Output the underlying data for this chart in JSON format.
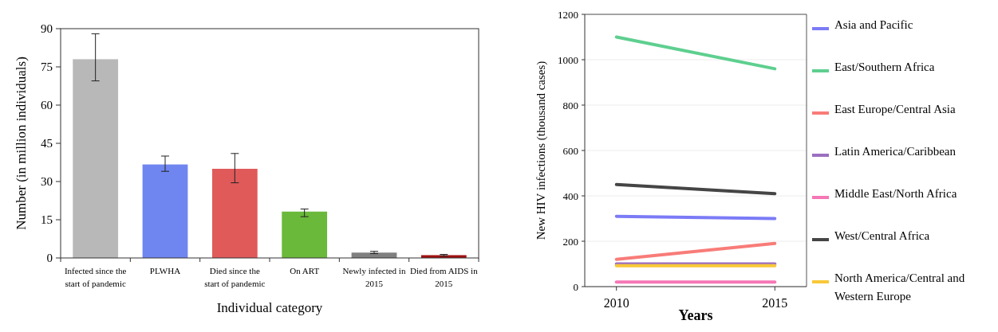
{
  "chart_data": [
    {
      "type": "bar",
      "xlabel": "Individual category",
      "ylabel": "Number (in million individuals)",
      "categories": [
        "Infected since the start of pandemic",
        "PLWHA",
        "Died since the start of pandemic",
        "On ART",
        "Newly infected in 2015",
        "Died from AIDS in 2015"
      ],
      "values": [
        78,
        36.7,
        35,
        18.2,
        2.1,
        1.1
      ],
      "colors": [
        "#b8b8b8",
        "#6f86f0",
        "#e05a5a",
        "#6ab93a",
        "#808080",
        "#a01010"
      ],
      "errors": [
        [
          69.5,
          88
        ],
        [
          34,
          40
        ],
        [
          29.5,
          41
        ],
        [
          16.2,
          19.2
        ],
        [
          1.7,
          2.6
        ],
        [
          0.8,
          1.4
        ]
      ],
      "ylim": [
        0,
        90
      ],
      "yticks": [
        0,
        15,
        30,
        45,
        60,
        75,
        90
      ],
      "grid": false
    },
    {
      "type": "line",
      "xlabel": "Years",
      "ylabel": "New HIV infections (thousand cases)",
      "x": [
        2010,
        2015
      ],
      "xlim": [
        2009,
        2016
      ],
      "xticks": [
        2010,
        2015
      ],
      "ylim": [
        0,
        1200
      ],
      "yticks": [
        0,
        200,
        400,
        600,
        800,
        1000,
        1200
      ],
      "grid": "y",
      "legend": "right",
      "series": [
        {
          "name": "Asia and Pacific",
          "color": "#7b7bf7",
          "values": [
            310,
            300
          ]
        },
        {
          "name": "East/Southern Africa",
          "color": "#5ecf8f",
          "values": [
            1100,
            960
          ]
        },
        {
          "name": "East Europe/Central Asia",
          "color": "#f87c78",
          "values": [
            120,
            190
          ]
        },
        {
          "name": "Latin America/Caribbean",
          "color": "#9b6fc0",
          "values": [
            100,
            100
          ]
        },
        {
          "name": "Middle East/North Africa",
          "color": "#f577b5",
          "values": [
            20,
            20
          ]
        },
        {
          "name": "West/Central Africa",
          "color": "#454545",
          "values": [
            450,
            410
          ]
        },
        {
          "name": "North America/Central and Western Europe",
          "color": "#f8c839",
          "values": [
            92,
            92
          ]
        }
      ]
    }
  ]
}
